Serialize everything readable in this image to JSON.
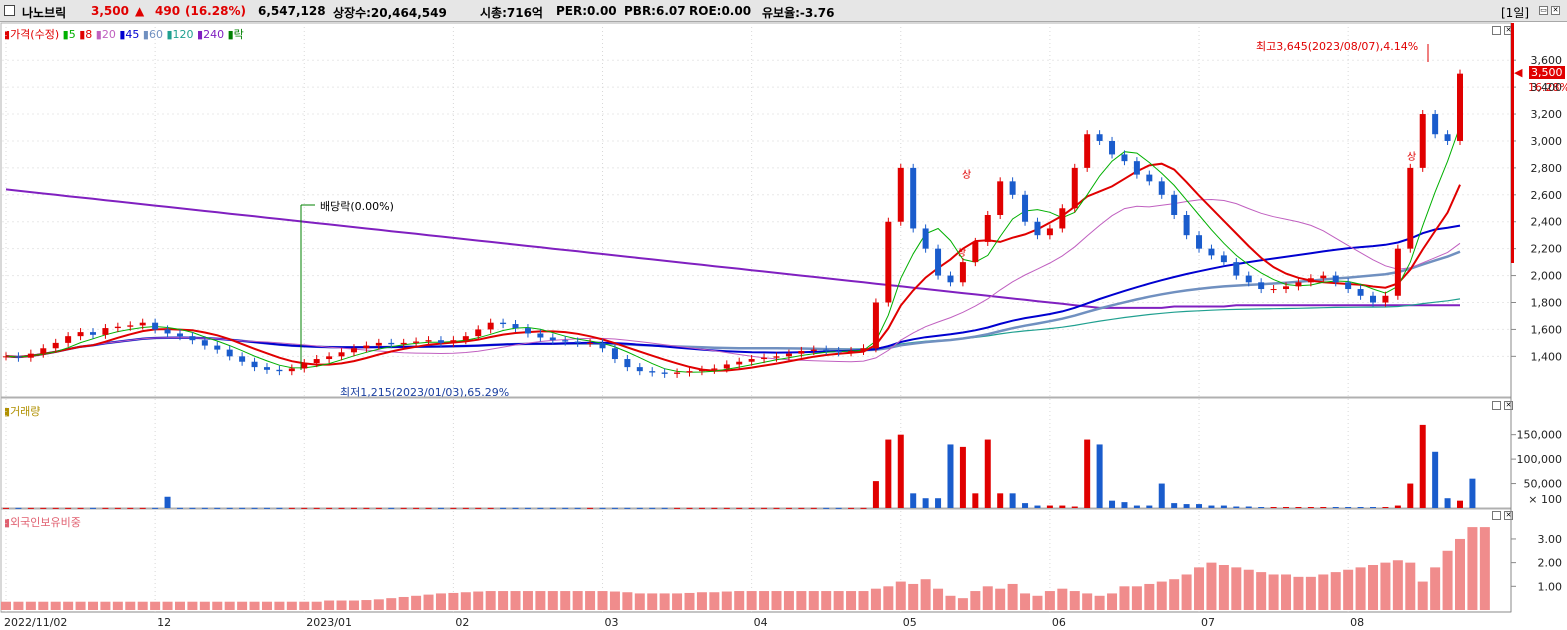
{
  "title_bar": {
    "checkbox_label": "",
    "stock_name": "나노브릭",
    "price": "3,500",
    "change_arrow": "▲",
    "change": "490",
    "change_pct": "(16.28%)",
    "volume": "6,547,128",
    "shares": "상장수:20,464,549",
    "market_cap": "시총:716억",
    "per": "PER:0.00",
    "pbr": "PBR:6.07",
    "roe": "ROE:0.00",
    "float": "유보율:-3.76",
    "period_button": "[1일]"
  },
  "price_panel": {
    "legend": [
      {
        "label": "가격(수정)",
        "color": "#e00000"
      },
      {
        "label": "5",
        "color": "#00b000"
      },
      {
        "label": "8",
        "color": "#e00000"
      },
      {
        "label": "20",
        "color": "#c060c0"
      },
      {
        "label": "45",
        "color": "#0000d0"
      },
      {
        "label": "60",
        "color": "#7090c0"
      },
      {
        "label": "120",
        "color": "#20a090"
      },
      {
        "label": "240",
        "color": "#8020c0"
      },
      {
        "label": "락",
        "color": "#008000"
      }
    ],
    "high_annotation": "최고3,645(2023/08/07),4.14%",
    "low_annotation": "최저1,215(2023/01/03),65.29%",
    "dividend_annotation": "배당락(0.00%)",
    "current_price_tag": "3,500",
    "current_pct_tag": "16.28%",
    "limit_up_marks": [
      "상",
      "상",
      "상"
    ]
  },
  "volume_panel": {
    "legend": "거래량"
  },
  "foreign_panel": {
    "legend": "외국인보유비중"
  },
  "colors": {
    "up": "#e00000",
    "down": "#1a5ccc",
    "ma5": "#00b000",
    "ma8": "#e00000",
    "ma20": "#c060c0",
    "ma45": "#0000d0",
    "ma60": "#7090c0",
    "ma120": "#20a090",
    "ma240": "#8020c0"
  },
  "chart_data": [
    {
      "type": "candlestick",
      "title": "",
      "x": [
        "2022/11/02",
        "12",
        "2023/01",
        "02",
        "03",
        "04",
        "05",
        "06",
        "07",
        "08"
      ],
      "y_ticks": [
        "1,400",
        "1,600",
        "1,800",
        "2,000",
        "2,200",
        "2,400",
        "2,600",
        "2,800",
        "3,000",
        "3,200",
        "3,400",
        "3,600"
      ],
      "ylim": [
        1150,
        3750
      ],
      "closes": [
        1400,
        1390,
        1420,
        1460,
        1500,
        1550,
        1580,
        1560,
        1610,
        1620,
        1630,
        1650,
        1600,
        1570,
        1550,
        1520,
        1480,
        1450,
        1400,
        1360,
        1320,
        1300,
        1290,
        1310,
        1350,
        1380,
        1400,
        1430,
        1460,
        1480,
        1500,
        1490,
        1500,
        1510,
        1520,
        1500,
        1520,
        1550,
        1600,
        1650,
        1640,
        1610,
        1570,
        1540,
        1520,
        1510,
        1500,
        1500,
        1460,
        1380,
        1320,
        1290,
        1280,
        1270,
        1280,
        1290,
        1300,
        1310,
        1340,
        1360,
        1380,
        1390,
        1400,
        1420,
        1440,
        1450,
        1440,
        1430,
        1440,
        1460,
        1800,
        2400,
        2800,
        2350,
        2200,
        2000,
        1950,
        2100,
        2250,
        2450,
        2700,
        2600,
        2400,
        2300,
        2350,
        2500,
        2800,
        3050,
        3000,
        2900,
        2850,
        2750,
        2700,
        2600,
        2450,
        2300,
        2200,
        2150,
        2100,
        2000,
        1950,
        1900,
        1900,
        1920,
        1950,
        1980,
        2000,
        1950,
        1900,
        1850,
        1800,
        1850,
        2200,
        2800,
        3200,
        3050,
        3000,
        3500
      ],
      "ma240": [
        2640,
        2630,
        2620,
        2610,
        2600,
        2590,
        2580,
        2570,
        2560,
        2550,
        2540,
        2530,
        2520,
        2510,
        2500,
        2490,
        2480,
        2470,
        2460,
        2450,
        2440,
        2430,
        2420,
        2410,
        2400,
        2390,
        2380,
        2370,
        2360,
        2350,
        2340,
        2330,
        2320,
        2310,
        2300,
        2290,
        2280,
        2270,
        2260,
        2250,
        2240,
        2230,
        2220,
        2210,
        2200,
        2190,
        2180,
        2170,
        2160,
        2150,
        2140,
        2130,
        2120,
        2110,
        2100,
        2090,
        2080,
        2070,
        2060,
        2050,
        2040,
        2030,
        2020,
        2010,
        2000,
        1990,
        1980,
        1970,
        1960,
        1950,
        1940,
        1930,
        1920,
        1910,
        1900,
        1890,
        1880,
        1870,
        1860,
        1850,
        1840,
        1830,
        1820,
        1810,
        1800,
        1790,
        1780,
        1770,
        1760,
        1760,
        1760,
        1760,
        1760,
        1760,
        1770,
        1770,
        1770,
        1770,
        1770,
        1780,
        1780,
        1780,
        1780,
        1780,
        1780,
        1780,
        1780,
        1780,
        1780,
        1780,
        1780,
        1780,
        1780,
        1780,
        1780,
        1780,
        1780,
        1780
      ]
    },
    {
      "type": "bar",
      "title": "거래량",
      "y_ticks": [
        "× 100",
        "50,000",
        "100,000",
        "150,000"
      ],
      "ylim": [
        0,
        180000
      ],
      "values": [
        300,
        300,
        300,
        300,
        300,
        300,
        300,
        300,
        300,
        300,
        300,
        300,
        300,
        23000,
        300,
        300,
        300,
        300,
        300,
        300,
        300,
        300,
        300,
        300,
        300,
        300,
        300,
        300,
        300,
        300,
        300,
        300,
        300,
        300,
        300,
        300,
        300,
        300,
        300,
        300,
        300,
        300,
        300,
        300,
        300,
        300,
        300,
        300,
        300,
        300,
        300,
        300,
        300,
        300,
        300,
        300,
        300,
        300,
        300,
        300,
        300,
        300,
        300,
        300,
        300,
        300,
        300,
        300,
        300,
        300,
        55000,
        140000,
        150000,
        30000,
        20000,
        20000,
        130000,
        125000,
        30000,
        140000,
        30000,
        30000,
        10000,
        5000,
        5000,
        5000,
        3000,
        140000,
        130000,
        15000,
        12000,
        5000,
        5000,
        50000,
        10000,
        8000,
        8000,
        5000,
        5000,
        3000,
        3000,
        2000,
        2000,
        2000,
        2000,
        2000,
        2000,
        2000,
        2000,
        2000,
        2000,
        2000,
        5000,
        50000,
        170000,
        115000,
        20000,
        15000,
        60000
      ]
    },
    {
      "type": "bar",
      "title": "외국인보유비중",
      "y_ticks": [
        "1.00",
        "2.00",
        "3.00"
      ],
      "ylim": [
        0,
        3.8
      ],
      "values": [
        0.35,
        0.35,
        0.35,
        0.35,
        0.35,
        0.35,
        0.35,
        0.35,
        0.35,
        0.35,
        0.35,
        0.35,
        0.35,
        0.35,
        0.35,
        0.35,
        0.35,
        0.35,
        0.35,
        0.35,
        0.35,
        0.35,
        0.35,
        0.35,
        0.35,
        0.35,
        0.4,
        0.4,
        0.4,
        0.42,
        0.45,
        0.5,
        0.55,
        0.6,
        0.65,
        0.7,
        0.72,
        0.75,
        0.78,
        0.8,
        0.8,
        0.8,
        0.8,
        0.8,
        0.8,
        0.8,
        0.8,
        0.8,
        0.8,
        0.78,
        0.75,
        0.7,
        0.7,
        0.7,
        0.7,
        0.72,
        0.75,
        0.75,
        0.78,
        0.8,
        0.8,
        0.8,
        0.8,
        0.8,
        0.8,
        0.8,
        0.8,
        0.8,
        0.8,
        0.8,
        0.9,
        1.0,
        1.2,
        1.1,
        1.3,
        0.9,
        0.6,
        0.5,
        0.8,
        1.0,
        0.9,
        1.1,
        0.7,
        0.6,
        0.8,
        0.9,
        0.8,
        0.7,
        0.6,
        0.7,
        1.0,
        1.0,
        1.1,
        1.2,
        1.3,
        1.5,
        1.8,
        2.0,
        1.9,
        1.8,
        1.7,
        1.6,
        1.5,
        1.5,
        1.4,
        1.4,
        1.5,
        1.6,
        1.7,
        1.8,
        1.9,
        2.0,
        2.1,
        2.0,
        1.2,
        1.8,
        2.5,
        3.0,
        3.5,
        3.5
      ]
    }
  ],
  "x_axis_labels": [
    "2022/11/02",
    "12",
    "2023/01",
    "02",
    "03",
    "04",
    "05",
    "06",
    "07",
    "08"
  ]
}
